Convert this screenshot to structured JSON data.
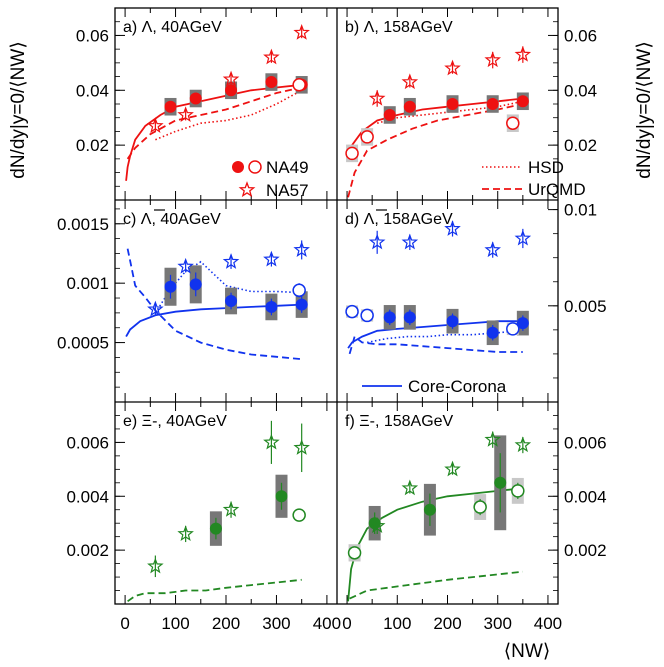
{
  "figure": {
    "ylabel": "dN/dy|y=0/⟨NW⟩",
    "xlabel": "⟨NW⟩",
    "x_ticks": [
      "0",
      "100",
      "200",
      "300",
      "400"
    ],
    "colors": {
      "lambda": "#ee1111",
      "antilambda": "#1133ee",
      "xi": "#228822",
      "syst_dark": "#777777",
      "syst_light": "#c8c8c8"
    }
  },
  "legend": {
    "na49": "NA49",
    "na57": "NA57",
    "hsd": "HSD",
    "urqmd": "UrQMD",
    "core_corona": "Core-Corona"
  },
  "chart_data": [
    {
      "id": "a",
      "type": "scatter",
      "title": "a)  Λ, 40AGeV",
      "color": "lambda",
      "xlim": [
        -20,
        420
      ],
      "ylim": [
        0.0,
        0.07
      ],
      "y_ticks": [
        0.02,
        0.04,
        0.06
      ],
      "y_tick_labels": [
        "0.02",
        "0.04",
        "0.06"
      ],
      "tick_side": "left",
      "series": [
        {
          "name": "NA49",
          "kind": "filled-circle",
          "x": [
            90,
            140,
            210,
            290,
            350
          ],
          "y": [
            0.034,
            0.037,
            0.04,
            0.043,
            0.042
          ],
          "err": [
            0.002,
            0.002,
            0.002,
            0.002,
            0.002
          ],
          "syst": "dark"
        },
        {
          "kind": "open-circle",
          "x": [
            345
          ],
          "y": [
            0.042
          ],
          "err": [
            0.002
          ]
        },
        {
          "name": "NA57",
          "kind": "star",
          "x": [
            60,
            120,
            210,
            290,
            350
          ],
          "y": [
            0.027,
            0.031,
            0.044,
            0.052,
            0.061
          ],
          "err": [
            0.002,
            0.002,
            0.002,
            0.002,
            0.002
          ]
        },
        {
          "name": "HSD",
          "kind": "dotted-line",
          "x": [
            60,
            100,
            150,
            200,
            250,
            300,
            350
          ],
          "y": [
            0.022,
            0.025,
            0.028,
            0.029,
            0.031,
            0.035,
            0.04
          ]
        },
        {
          "name": "UrQMD",
          "kind": "dashed-line",
          "x": [
            5,
            20,
            50,
            100,
            150,
            200,
            250,
            300,
            350
          ],
          "y": [
            0.015,
            0.019,
            0.024,
            0.029,
            0.031,
            0.033,
            0.036,
            0.039,
            0.041
          ]
        },
        {
          "name": "Core-Corona",
          "kind": "solid-line",
          "x": [
            2,
            5,
            10,
            20,
            40,
            70,
            100,
            150,
            200,
            250,
            300,
            350
          ],
          "y": [
            0.007,
            0.012,
            0.016,
            0.022,
            0.027,
            0.031,
            0.034,
            0.036,
            0.038,
            0.04,
            0.041,
            0.042
          ]
        }
      ]
    },
    {
      "id": "b",
      "type": "scatter",
      "title": "b)  Λ, 158AGeV",
      "color": "lambda",
      "xlim": [
        -20,
        420
      ],
      "ylim": [
        0.0,
        0.07
      ],
      "y_ticks": [
        0.02,
        0.04,
        0.06
      ],
      "y_tick_labels": [
        "0.02",
        "0.04",
        "0.06"
      ],
      "tick_side": "right",
      "series": [
        {
          "name": "NA49",
          "kind": "filled-circle",
          "x": [
            85,
            125,
            210,
            290,
            350
          ],
          "y": [
            0.031,
            0.034,
            0.035,
            0.035,
            0.036
          ],
          "err": [
            0.002,
            0.002,
            0.002,
            0.002,
            0.002
          ],
          "syst": "dark"
        },
        {
          "kind": "open-circle",
          "x": [
            10,
            40,
            330
          ],
          "y": [
            0.017,
            0.023,
            0.028
          ],
          "err": [
            0.002,
            0.002,
            0.002
          ],
          "syst": "light"
        },
        {
          "name": "NA57",
          "kind": "star",
          "x": [
            60,
            125,
            210,
            290,
            350
          ],
          "y": [
            0.037,
            0.043,
            0.048,
            0.051,
            0.053
          ],
          "err": [
            0.003,
            0.002,
            0.002,
            0.003,
            0.003
          ]
        },
        {
          "name": "HSD",
          "kind": "dotted-line",
          "x": [
            60,
            100,
            150,
            200,
            250,
            300,
            350
          ],
          "y": [
            0.028,
            0.03,
            0.031,
            0.032,
            0.033,
            0.034,
            0.036
          ]
        },
        {
          "name": "UrQMD",
          "kind": "dashed-line",
          "x": [
            2,
            15,
            40,
            80,
            130,
            180,
            240,
            300,
            350
          ],
          "y": [
            0.001,
            0.01,
            0.018,
            0.022,
            0.026,
            0.029,
            0.031,
            0.033,
            0.035
          ]
        },
        {
          "name": "Core-Corona",
          "kind": "solid-line",
          "x": [
            2,
            10,
            30,
            60,
            100,
            150,
            200,
            250,
            300,
            350
          ],
          "y": [
            0.016,
            0.02,
            0.025,
            0.029,
            0.031,
            0.033,
            0.034,
            0.035,
            0.036,
            0.037
          ]
        }
      ]
    },
    {
      "id": "c",
      "type": "scatter",
      "title": "c)  Λ, 40AGeV",
      "overline": true,
      "color": "antilambda",
      "xlim": [
        -20,
        420
      ],
      "ylim": [
        0.0,
        0.0017
      ],
      "y_ticks": [
        0.0005,
        0.001,
        0.0015
      ],
      "y_tick_labels": [
        "0.0005",
        "0.001",
        "0.0015"
      ],
      "tick_side": "left",
      "series": [
        {
          "name": "NA49",
          "kind": "filled-circle",
          "x": [
            90,
            140,
            210,
            290,
            350
          ],
          "y": [
            0.00097,
            0.00099,
            0.00085,
            0.0008,
            0.00082
          ],
          "err": [
            0.0001,
            0.0001,
            7e-05,
            7e-05,
            7e-05
          ],
          "syst": "dark"
        },
        {
          "kind": "open-circle",
          "x": [
            345
          ],
          "y": [
            0.00094
          ],
          "err": [
            6e-05
          ]
        },
        {
          "name": "NA57",
          "kind": "star",
          "x": [
            60,
            120,
            210,
            290,
            350
          ],
          "y": [
            0.00078,
            0.00114,
            0.00118,
            0.0012,
            0.00128
          ],
          "err": [
            5e-05,
            5e-05,
            6e-05,
            6e-05,
            8e-05
          ]
        },
        {
          "name": "HSD",
          "kind": "dotted-line",
          "x": [
            60,
            90,
            120,
            150,
            200,
            250,
            300,
            350
          ],
          "y": [
            0.00075,
            0.00095,
            0.0011,
            0.00118,
            0.00098,
            0.00093,
            0.00093,
            0.00092
          ]
        },
        {
          "name": "UrQMD",
          "kind": "dashed-line",
          "x": [
            5,
            10,
            20,
            40,
            60,
            100,
            150,
            200,
            250,
            300,
            350
          ],
          "y": [
            0.00129,
            0.00119,
            0.00098,
            0.00088,
            0.00077,
            0.0006,
            0.0005,
            0.00044,
            0.0004,
            0.00038,
            0.00036
          ]
        },
        {
          "name": "Core-Corona",
          "kind": "solid-line",
          "x": [
            2,
            10,
            30,
            60,
            100,
            150,
            200,
            250,
            300,
            350
          ],
          "y": [
            0.00055,
            0.00061,
            0.00068,
            0.00073,
            0.00076,
            0.00078,
            0.00079,
            0.0008,
            0.00081,
            0.00082
          ]
        }
      ]
    },
    {
      "id": "d",
      "type": "scatter",
      "title": "d)  Λ, 158AGeV",
      "overline": true,
      "color": "antilambda",
      "xlim": [
        -20,
        420
      ],
      "ylim": [
        0.0,
        0.0105
      ],
      "y_ticks": [
        0.005,
        0.01
      ],
      "y_tick_labels": [
        "0.005",
        "0.01"
      ],
      "tick_side": "right",
      "series": [
        {
          "name": "NA49",
          "kind": "filled-circle",
          "x": [
            85,
            125,
            210,
            290,
            350
          ],
          "y": [
            0.0044,
            0.0044,
            0.0042,
            0.0036,
            0.0041
          ],
          "err": [
            0.0004,
            0.0004,
            0.0004,
            0.0004,
            0.0004
          ],
          "syst": "dark"
        },
        {
          "kind": "open-circle",
          "x": [
            10,
            40,
            330
          ],
          "y": [
            0.0047,
            0.0045,
            0.0038
          ],
          "err": [
            0.0002,
            0.0002,
            0.0002
          ],
          "syst": "light"
        },
        {
          "name": "NA57",
          "kind": "star",
          "x": [
            60,
            125,
            210,
            290,
            350
          ],
          "y": [
            0.0083,
            0.0083,
            0.009,
            0.0079,
            0.0085
          ],
          "err": [
            0.0006,
            0.0004,
            0.0004,
            0.0004,
            0.0005
          ]
        },
        {
          "name": "HSD",
          "kind": "dotted-line",
          "x": [
            40,
            80,
            120,
            160,
            200,
            250,
            300,
            350
          ],
          "y": [
            0.0031,
            0.0033,
            0.0034,
            0.0034,
            0.0035,
            0.0035,
            0.0036,
            0.0037
          ]
        },
        {
          "name": "UrQMD",
          "kind": "dashed-line",
          "x": [
            5,
            15,
            30,
            60,
            100,
            150,
            200,
            250,
            300,
            350
          ],
          "y": [
            0.0025,
            0.0034,
            0.0031,
            0.003,
            0.003,
            0.0029,
            0.0028,
            0.0027,
            0.0026,
            0.0026
          ]
        },
        {
          "name": "Core-Corona",
          "kind": "solid-line",
          "x": [
            2,
            10,
            30,
            60,
            100,
            150,
            200,
            250,
            300,
            350
          ],
          "y": [
            0.0028,
            0.0031,
            0.0034,
            0.0037,
            0.0038,
            0.0039,
            0.004,
            0.0041,
            0.0042,
            0.0042
          ]
        }
      ]
    },
    {
      "id": "e",
      "type": "scatter",
      "title": "e)  Ξ-, 40AGeV",
      "color": "xi",
      "xlim": [
        -20,
        420
      ],
      "ylim": [
        0.0,
        0.0075
      ],
      "y_ticks": [
        0.002,
        0.004,
        0.006
      ],
      "y_tick_labels": [
        "0.002",
        "0.004",
        "0.006"
      ],
      "tick_side": "left",
      "series": [
        {
          "name": "NA49",
          "kind": "filled-circle",
          "x": [
            180,
            310
          ],
          "y": [
            0.0028,
            0.004
          ],
          "err": [
            0.0004,
            0.0005
          ],
          "syst": "dark"
        },
        {
          "kind": "open-circle",
          "x": [
            345
          ],
          "y": [
            0.0033
          ],
          "err": [
            0.0002
          ]
        },
        {
          "name": "NA57",
          "kind": "star",
          "x": [
            60,
            120,
            210,
            290,
            350
          ],
          "y": [
            0.0014,
            0.0026,
            0.0035,
            0.006,
            0.0058
          ],
          "err": [
            0.0004,
            0.0003,
            0.0003,
            0.0008,
            0.0009
          ]
        },
        {
          "name": "UrQMD",
          "kind": "dashed-line",
          "x": [
            5,
            20,
            40,
            80,
            120,
            160,
            200,
            250,
            300,
            350
          ],
          "y": [
            0.0001,
            0.0003,
            0.0004,
            0.0004,
            0.0005,
            0.0005,
            0.0006,
            0.0007,
            0.0008,
            0.0009
          ]
        }
      ]
    },
    {
      "id": "f",
      "type": "scatter",
      "title": "f)  Ξ-, 158AGeV",
      "color": "xi",
      "xlim": [
        -20,
        420
      ],
      "ylim": [
        0.0,
        0.0075
      ],
      "y_ticks": [
        0.002,
        0.004,
        0.006
      ],
      "y_tick_labels": [
        "0.002",
        "0.004",
        "0.006"
      ],
      "tick_side": "right",
      "series": [
        {
          "name": "NA49",
          "kind": "filled-circle",
          "x": [
            55,
            165,
            305
          ],
          "y": [
            0.003,
            0.0035,
            0.0045
          ],
          "err": [
            0.0004,
            0.0006,
            0.0011
          ],
          "syst": "dark"
        },
        {
          "kind": "open-circle",
          "x": [
            15,
            265,
            340
          ],
          "y": [
            0.0019,
            0.0036,
            0.0042
          ],
          "err": [
            0.0002,
            0.0003,
            0.0003
          ],
          "syst": "light"
        },
        {
          "name": "NA57",
          "kind": "star",
          "x": [
            60,
            125,
            210,
            290,
            350
          ],
          "y": [
            0.0029,
            0.0043,
            0.005,
            0.0061,
            0.0059
          ],
          "err": [
            0.0003,
            0.0002,
            0.0002,
            0.0003,
            0.0003
          ]
        },
        {
          "name": "UrQMD",
          "kind": "dashed-line",
          "x": [
            5,
            40,
            80,
            120,
            160,
            200,
            250,
            300,
            350
          ],
          "y": [
            0.0002,
            0.0005,
            0.0006,
            0.0007,
            0.0008,
            0.0009,
            0.001,
            0.0011,
            0.0012
          ]
        },
        {
          "name": "Core-Corona",
          "kind": "solid-line",
          "x": [
            2,
            8,
            20,
            40,
            70,
            100,
            150,
            200,
            250,
            300,
            350
          ],
          "y": [
            0.0001,
            0.0013,
            0.0021,
            0.0028,
            0.0032,
            0.0035,
            0.0038,
            0.004,
            0.0041,
            0.0042,
            0.0043
          ]
        }
      ]
    }
  ]
}
